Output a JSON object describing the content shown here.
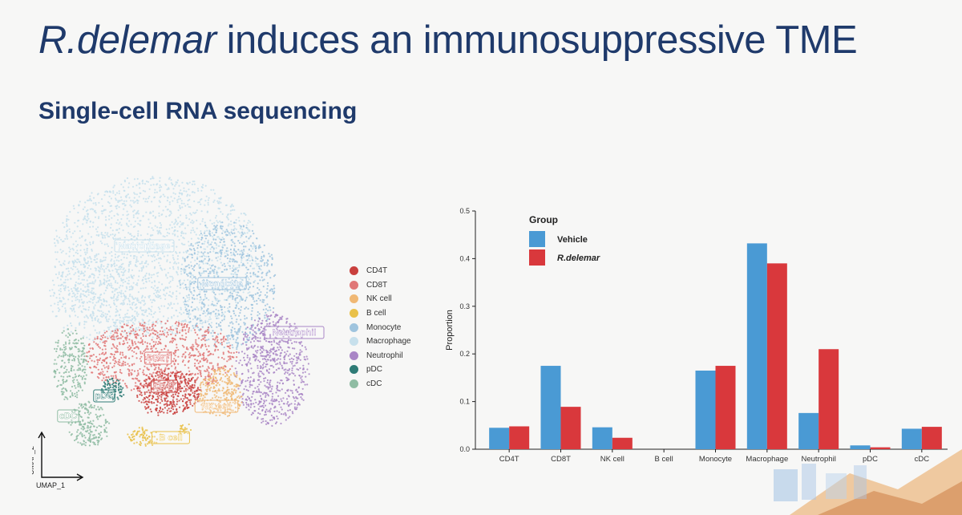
{
  "slide": {
    "title_italic": "R.delemar",
    "title_rest": " induces an immunosuppressive TME",
    "subtitle": "Single-cell RNA sequencing"
  },
  "umap": {
    "xlabel": "UMAP_1",
    "ylabel": "UMAP_2",
    "clusters": [
      {
        "name": "CD4T",
        "color": "#c9403d"
      },
      {
        "name": "CD8T",
        "color": "#e07777"
      },
      {
        "name": "NK cell",
        "color": "#f0b874"
      },
      {
        "name": "B cell",
        "color": "#e9c14a"
      },
      {
        "name": "Monocyte",
        "color": "#9fc4de"
      },
      {
        "name": "Macrophage",
        "color": "#c7e0ec"
      },
      {
        "name": "Neutrophil",
        "color": "#a986c6"
      },
      {
        "name": "pDC",
        "color": "#2e7b76"
      },
      {
        "name": "cDC",
        "color": "#8fbca3"
      }
    ]
  },
  "chart_data": {
    "type": "bar",
    "categories": [
      "CD4T",
      "CD8T",
      "NK cell",
      "B cell",
      "Monocyte",
      "Macrophage",
      "Neutrophil",
      "pDC",
      "cDC"
    ],
    "series": [
      {
        "name": "Vehicle",
        "color": "#4a9ad4",
        "values": [
          0.045,
          0.175,
          0.046,
          0.0,
          0.165,
          0.432,
          0.076,
          0.008,
          0.043
        ]
      },
      {
        "name": "R.delemar",
        "color": "#d9383c",
        "values": [
          0.048,
          0.089,
          0.024,
          0.0,
          0.175,
          0.39,
          0.21,
          0.004,
          0.047
        ]
      }
    ],
    "ylabel": "Proportion",
    "xlabel": "",
    "ylim": [
      0,
      0.5
    ],
    "yticks": [
      "0.0",
      "0.1",
      "0.2",
      "0.3",
      "0.4",
      "0.5"
    ],
    "legend_title": "Group",
    "legend_position": "top-left",
    "grid": false
  }
}
